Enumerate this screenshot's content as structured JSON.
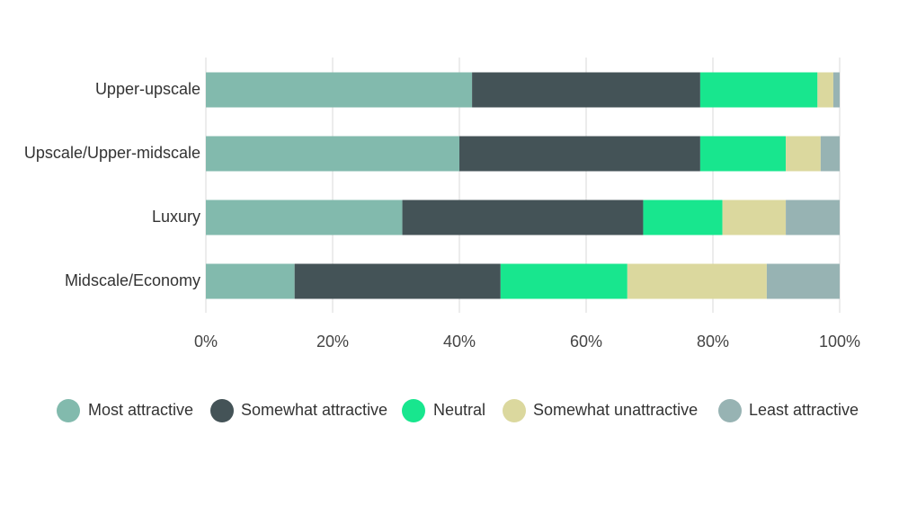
{
  "chart_data": {
    "type": "bar",
    "orientation": "horizontal",
    "stacked": true,
    "title": "",
    "xlabel": "",
    "ylabel": "",
    "xlim": [
      0,
      100
    ],
    "x_ticks": [
      "0%",
      "20%",
      "40%",
      "60%",
      "80%",
      "100%"
    ],
    "x_tick_values": [
      0,
      20,
      40,
      60,
      80,
      100
    ],
    "grid": true,
    "legend_position": "bottom",
    "categories": [
      "Upper-upscale",
      "Upscale/Upper-midscale",
      "Luxury",
      "Midscale/Economy"
    ],
    "series": [
      {
        "name": "Most attractive",
        "color": "#82BAAD",
        "values": [
          42,
          40,
          31,
          14
        ]
      },
      {
        "name": "Somewhat attractive",
        "color": "#445357",
        "values": [
          36,
          38,
          38,
          32.5
        ]
      },
      {
        "name": "Neutral",
        "color": "#18E68E",
        "values": [
          18.5,
          13.5,
          12.5,
          20
        ]
      },
      {
        "name": "Somewhat unattractive",
        "color": "#DBD89E",
        "values": [
          2.5,
          5.5,
          10,
          22
        ]
      },
      {
        "name": "Least attractive",
        "color": "#97B3B3",
        "values": [
          1,
          3,
          8.5,
          11.5
        ]
      }
    ]
  }
}
